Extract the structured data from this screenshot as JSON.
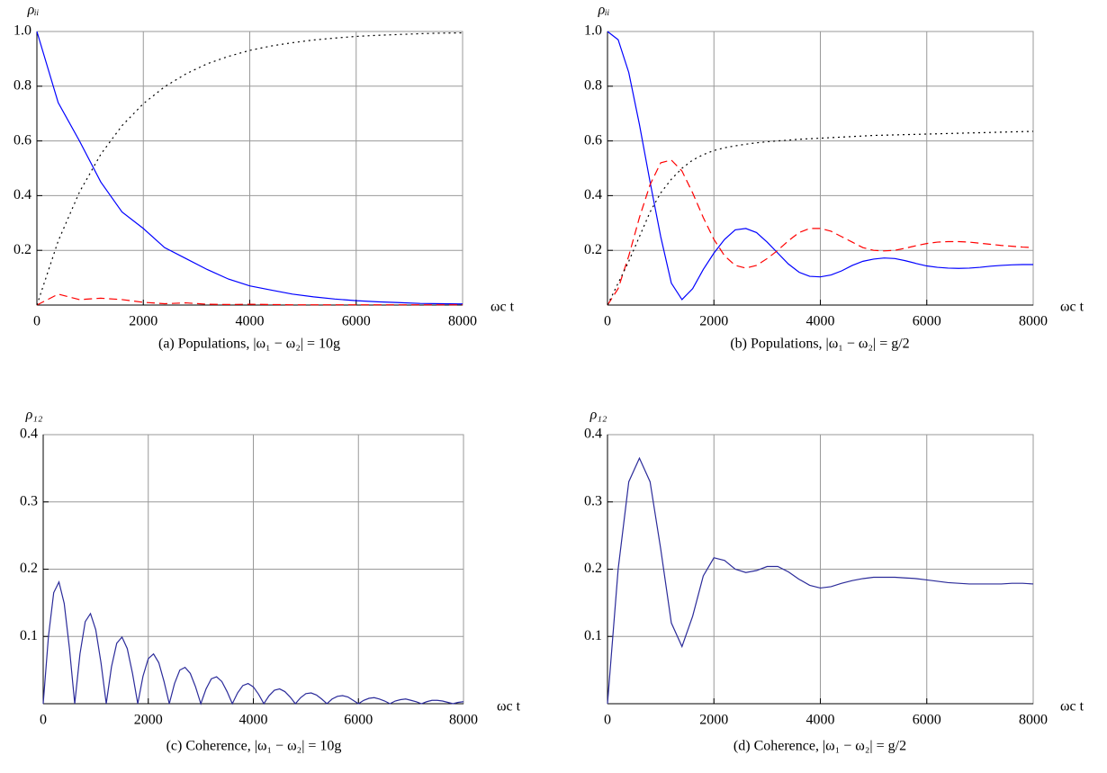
{
  "chart_data": [
    {
      "type": "line",
      "ylabel": "ρᵢᵢ",
      "xlabel": "ωc t",
      "caption": "(a) Populations, |ω₁ − ω₂| = 10g",
      "xlim": [
        0,
        8000
      ],
      "ylim": [
        0,
        1
      ],
      "xticks": [
        0,
        2000,
        4000,
        6000,
        8000
      ],
      "yticks": [
        0.2,
        0.4,
        0.6,
        0.8,
        {
          "value": 1,
          "label": "1.0"
        }
      ],
      "grid": true,
      "x": [
        0,
        400,
        800,
        1200,
        1600,
        2000,
        2400,
        2800,
        3200,
        3600,
        4000,
        4400,
        4800,
        5200,
        5600,
        6000,
        6400,
        6800,
        7200,
        7600,
        8000
      ],
      "series": [
        {
          "color": "#0000ff",
          "dash": "solid",
          "values": [
            1,
            0.74,
            0.6,
            0.45,
            0.34,
            0.28,
            0.21,
            0.17,
            0.13,
            0.095,
            0.07,
            0.055,
            0.04,
            0.03,
            0.022,
            0.016,
            0.012,
            0.009,
            0.006,
            0.005,
            0.004
          ]
        },
        {
          "color": "#ff0000",
          "dash": "dashed",
          "values": [
            0,
            0.04,
            0.02,
            0.025,
            0.02,
            0.01,
            0.005,
            0.008,
            0.003,
            0.002,
            0.003,
            0.002,
            0.001,
            0.001,
            0.001,
            0.001,
            0.001,
            0.001,
            0.001,
            0.001,
            0.001
          ]
        },
        {
          "color": "#000000",
          "dash": "dotted",
          "values": [
            0,
            0.234,
            0.413,
            0.551,
            0.656,
            0.736,
            0.798,
            0.845,
            0.882,
            0.909,
            0.931,
            0.947,
            0.959,
            0.969,
            0.976,
            0.982,
            0.986,
            0.989,
            0.992,
            0.994,
            0.995
          ]
        }
      ]
    },
    {
      "type": "line",
      "ylabel": "ρᵢᵢ",
      "xlabel": "ωc t",
      "caption": "(b) Populations, |ω₁ − ω₂| = g/2",
      "xlim": [
        0,
        8000
      ],
      "ylim": [
        0,
        1
      ],
      "xticks": [
        0,
        2000,
        4000,
        6000,
        8000
      ],
      "yticks": [
        0.2,
        0.4,
        0.6,
        0.8,
        {
          "value": 1,
          "label": "1.0"
        }
      ],
      "grid": true,
      "x": [
        0,
        200,
        400,
        600,
        800,
        1000,
        1200,
        1400,
        1600,
        1800,
        2000,
        2200,
        2400,
        2600,
        2800,
        3000,
        3200,
        3400,
        3600,
        3800,
        4000,
        4200,
        4400,
        4600,
        4800,
        5000,
        5200,
        5400,
        5600,
        5800,
        6000,
        6200,
        6400,
        6600,
        6800,
        7000,
        7200,
        7400,
        7600,
        7800,
        8000
      ],
      "series": [
        {
          "color": "#0000ff",
          "dash": "solid",
          "values": [
            1,
            0.97,
            0.85,
            0.66,
            0.45,
            0.25,
            0.08,
            0.02,
            0.06,
            0.13,
            0.19,
            0.24,
            0.275,
            0.28,
            0.265,
            0.23,
            0.19,
            0.15,
            0.12,
            0.105,
            0.103,
            0.11,
            0.125,
            0.145,
            0.16,
            0.168,
            0.172,
            0.17,
            0.162,
            0.152,
            0.143,
            0.138,
            0.135,
            0.134,
            0.135,
            0.138,
            0.142,
            0.145,
            0.147,
            0.148,
            0.148
          ]
        },
        {
          "color": "#ff0000",
          "dash": "dashed",
          "values": [
            0,
            0.06,
            0.18,
            0.32,
            0.44,
            0.52,
            0.53,
            0.49,
            0.41,
            0.32,
            0.24,
            0.18,
            0.145,
            0.135,
            0.145,
            0.17,
            0.2,
            0.235,
            0.265,
            0.28,
            0.28,
            0.27,
            0.25,
            0.23,
            0.21,
            0.2,
            0.198,
            0.2,
            0.208,
            0.217,
            0.225,
            0.23,
            0.232,
            0.232,
            0.23,
            0.226,
            0.222,
            0.218,
            0.215,
            0.212,
            0.21
          ]
        },
        {
          "color": "#000000",
          "dash": "dotted",
          "values": [
            0,
            0.08,
            0.16,
            0.25,
            0.34,
            0.41,
            0.46,
            0.5,
            0.53,
            0.55,
            0.565,
            0.575,
            0.582,
            0.588,
            0.593,
            0.597,
            0.6,
            0.603,
            0.606,
            0.608,
            0.61,
            0.612,
            0.614,
            0.616,
            0.618,
            0.62,
            0.621,
            0.622,
            0.623,
            0.624,
            0.625,
            0.626,
            0.627,
            0.628,
            0.629,
            0.63,
            0.631,
            0.632,
            0.633,
            0.634,
            0.635
          ]
        }
      ]
    },
    {
      "type": "line",
      "ylabel": "ρ₁₂",
      "xlabel": "ωc t",
      "caption": "(c) Coherence, |ω₁ − ω₂| = 10g",
      "xlim": [
        0,
        8000
      ],
      "ylim": [
        0,
        0.4
      ],
      "xticks": [
        0,
        2000,
        4000,
        6000,
        8000
      ],
      "yticks": [
        0.1,
        0.2,
        0.3,
        0.4
      ],
      "grid": true,
      "x": [
        0,
        100,
        200,
        300,
        400,
        500,
        600,
        700,
        800,
        900,
        1000,
        1100,
        1200,
        1300,
        1400,
        1500,
        1600,
        1700,
        1800,
        1900,
        2000,
        2100,
        2200,
        2300,
        2400,
        2500,
        2600,
        2700,
        2800,
        2900,
        3000,
        3100,
        3200,
        3300,
        3400,
        3500,
        3600,
        3700,
        3800,
        3900,
        4000,
        4100,
        4200,
        4300,
        4400,
        4500,
        4600,
        4700,
        4800,
        4900,
        5000,
        5100,
        5200,
        5300,
        5400,
        5500,
        5600,
        5700,
        5800,
        5900,
        6000,
        6100,
        6200,
        6300,
        6400,
        6500,
        6600,
        6700,
        6800,
        6900,
        7000,
        7100,
        7200,
        7300,
        7400,
        7500,
        7600,
        7700,
        7800,
        7900,
        8000
      ],
      "series": [
        {
          "color": "#2b2b9a",
          "dash": "solid",
          "values": [
            0,
            0.1,
            0.165,
            0.181,
            0.149,
            0.082,
            0,
            0.074,
            0.122,
            0.134,
            0.11,
            0.061,
            0,
            0.055,
            0.09,
            0.099,
            0.082,
            0.045,
            0,
            0.041,
            0.067,
            0.074,
            0.061,
            0.033,
            0,
            0.03,
            0.05,
            0.054,
            0.045,
            0.025,
            0,
            0.022,
            0.037,
            0.04,
            0.033,
            0.018,
            0,
            0.016,
            0.027,
            0.03,
            0.025,
            0.014,
            0,
            0.012,
            0.02,
            0.022,
            0.018,
            0.01,
            0,
            0.009,
            0.015,
            0.016,
            0.013,
            0.007,
            0,
            0.007,
            0.011,
            0.012,
            0.01,
            0.005,
            0,
            0.005,
            0.008,
            0.009,
            0.007,
            0.004,
            0,
            0.004,
            0.006,
            0.007,
            0.005,
            0.003,
            0,
            0.003,
            0.005,
            0.005,
            0.004,
            0.002,
            0,
            0.002,
            0.003
          ]
        }
      ]
    },
    {
      "type": "line",
      "ylabel": "ρ₁₂",
      "xlabel": "ωc t",
      "caption": "(d) Coherence, |ω₁ − ω₂| = g/2",
      "xlim": [
        0,
        8000
      ],
      "ylim": [
        0,
        0.4
      ],
      "xticks": [
        0,
        2000,
        4000,
        6000,
        8000
      ],
      "yticks": [
        0.1,
        0.2,
        0.3,
        0.4
      ],
      "grid": true,
      "x": [
        0,
        200,
        400,
        600,
        800,
        1000,
        1200,
        1400,
        1600,
        1800,
        2000,
        2200,
        2400,
        2600,
        2800,
        3000,
        3200,
        3400,
        3600,
        3800,
        4000,
        4200,
        4400,
        4600,
        4800,
        5000,
        5200,
        5400,
        5600,
        5800,
        6000,
        6200,
        6400,
        6600,
        6800,
        7000,
        7200,
        7400,
        7600,
        7800,
        8000
      ],
      "series": [
        {
          "color": "#2b2b9a",
          "dash": "solid",
          "values": [
            0,
            0.2,
            0.33,
            0.365,
            0.33,
            0.23,
            0.12,
            0.085,
            0.13,
            0.19,
            0.217,
            0.213,
            0.2,
            0.195,
            0.198,
            0.204,
            0.204,
            0.196,
            0.185,
            0.176,
            0.172,
            0.174,
            0.179,
            0.183,
            0.186,
            0.188,
            0.188,
            0.188,
            0.187,
            0.186,
            0.184,
            0.182,
            0.18,
            0.179,
            0.178,
            0.178,
            0.178,
            0.178,
            0.179,
            0.179,
            0.178
          ]
        }
      ]
    }
  ]
}
